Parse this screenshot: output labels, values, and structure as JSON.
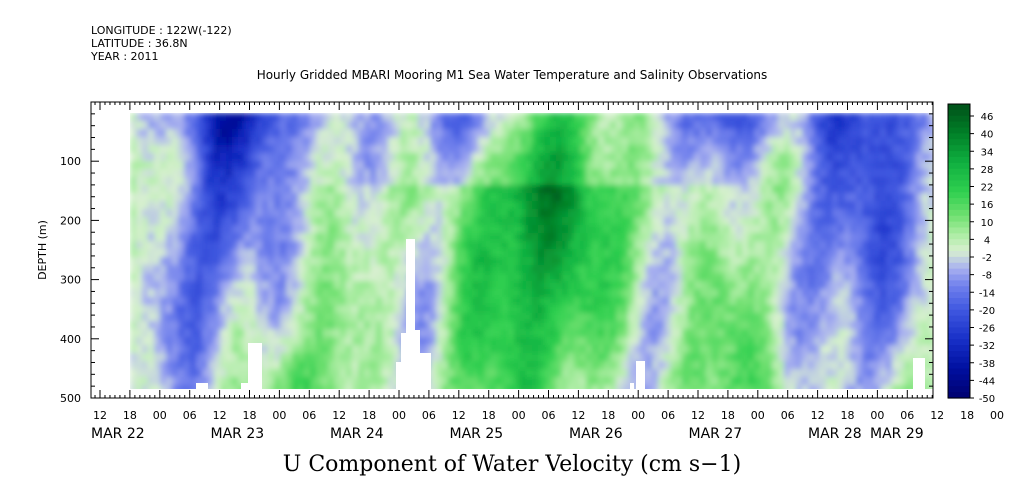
{
  "header": {
    "longitude": "LONGITUDE : 122W(-122)",
    "latitude": "LATITUDE : 36.8N",
    "year": "YEAR : 2011"
  },
  "chart_data": {
    "type": "heatmap",
    "title": "Hourly Gridded MBARI Mooring M1 Sea Water Temperature and Salinity Observations",
    "xlabel": "U Component of Water Velocity (cm s−1)",
    "ylabel": "DEPTH (m)",
    "ylim": [
      500,
      0
    ],
    "y_ticks": [
      100,
      200,
      300,
      400,
      500
    ],
    "x_hour_ticks": [
      "12",
      "18",
      "00",
      "06",
      "12",
      "18",
      "00",
      "06",
      "12",
      "18",
      "00",
      "06",
      "12",
      "18",
      "00",
      "06",
      "12",
      "18",
      "00",
      "06",
      "12",
      "18",
      "00",
      "06",
      "12",
      "18",
      "00",
      "06",
      "12",
      "18",
      "00",
      "06"
    ],
    "x_date_labels": [
      "MAR 22",
      "MAR 23",
      "MAR 24",
      "MAR 25",
      "MAR 26",
      "MAR 27",
      "MAR 28",
      "MAR 29"
    ],
    "colorbar": {
      "labels": [
        "46",
        "40",
        "34",
        "28",
        "22",
        "16",
        "10",
        "4",
        "-2",
        "-8",
        "-14",
        "-20",
        "-26",
        "-32",
        "-38",
        "-44",
        "-50"
      ],
      "range": [
        -50,
        50
      ]
    },
    "colors": {
      "negative_strong": "#2030c0",
      "negative_weak": "#a8b0f0",
      "neutral": "#d8f0d0",
      "positive_weak": "#80e080",
      "positive_strong": "#10b040"
    }
  }
}
